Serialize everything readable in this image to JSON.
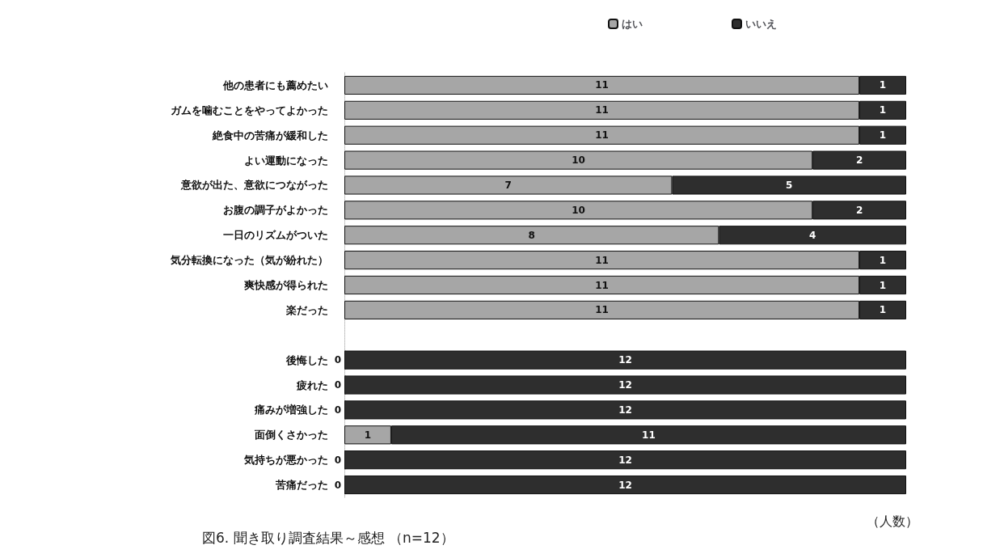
{
  "chart_data": {
    "type": "bar",
    "orientation": "horizontal",
    "stacked": true,
    "title": "図6. 聞き取り調査結果～感想 （n=12）",
    "xlabel": "（人数）",
    "categories": [
      "他の患者にも薦めたい",
      "ガムを噛むことをやってよかった",
      "絶食中の苦痛が緩和した",
      "よい運動になった",
      "意欲が出た、意欲につながった",
      "お腹の調子がよかった",
      "一日のリズムがついた",
      "気分転換になった（気が紛れた）",
      "爽快感が得られた",
      "楽だった",
      null,
      "後悔した",
      "疲れた",
      "痛みが増強した",
      "面倒くさかった",
      "気持ちが悪かった",
      "苦痛だった"
    ],
    "series": [
      {
        "name": "はい",
        "color": "#a6a6a6",
        "values": [
          11,
          11,
          11,
          10,
          7,
          10,
          8,
          11,
          11,
          11,
          null,
          0,
          0,
          0,
          1,
          0,
          0
        ]
      },
      {
        "name": "いいえ",
        "color": "#2e2e2e",
        "values": [
          1,
          1,
          1,
          2,
          5,
          2,
          4,
          1,
          1,
          1,
          null,
          12,
          12,
          12,
          11,
          12,
          12
        ]
      }
    ],
    "xlim": [
      0,
      12
    ],
    "tick_labels": "y",
    "data_labels": true,
    "legend": "top right",
    "grid": false
  }
}
